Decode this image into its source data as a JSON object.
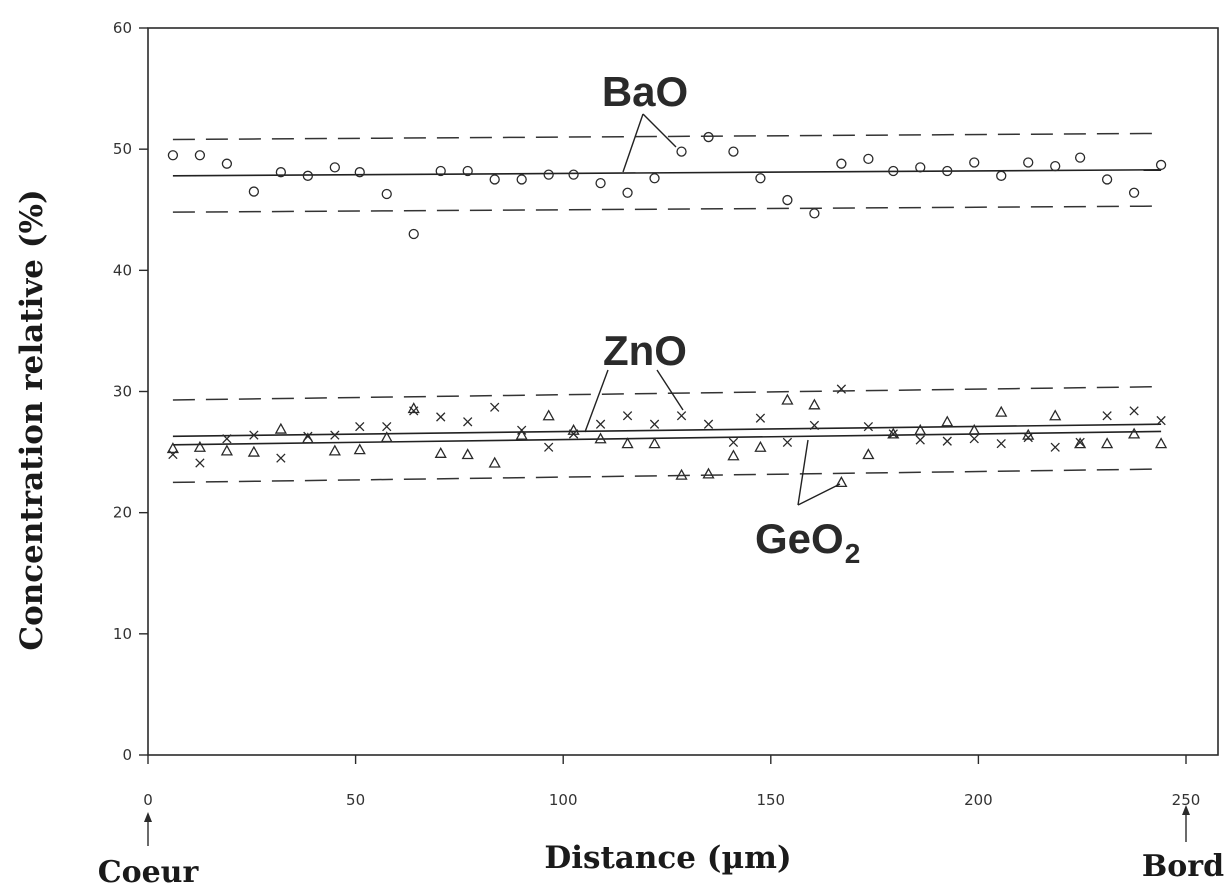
{
  "chart_data": {
    "type": "scatter",
    "title": "",
    "xlabel": "Distance (µm)",
    "ylabel": "Concentration relative (%)",
    "xlim": [
      0,
      250
    ],
    "ylim": [
      0,
      60
    ],
    "xticks": [
      0,
      50,
      100,
      150,
      200,
      250
    ],
    "yticks": [
      0,
      10,
      20,
      30,
      40,
      50,
      60
    ],
    "grid": false,
    "x_start_label": "Coeur",
    "x_end_label": "Bord",
    "series": [
      {
        "name": "BaO",
        "marker": "circle",
        "x": [
          6,
          12.5,
          19,
          25.5,
          32,
          38.5,
          45,
          51,
          57.5,
          64,
          70.5,
          77,
          83.5,
          90,
          96.5,
          102.5,
          109,
          115.5,
          122,
          128.5,
          135,
          141,
          147.5,
          154,
          160.5,
          167,
          173.5,
          179.5,
          186,
          192.5,
          199,
          205.5,
          212,
          218.5,
          224.5,
          231,
          237.5,
          244
        ],
        "y": [
          49.5,
          49.5,
          48.8,
          46.5,
          48.1,
          47.8,
          48.5,
          48.1,
          46.3,
          43.0,
          48.2,
          48.2,
          47.5,
          47.5,
          47.9,
          47.9,
          47.2,
          46.4,
          47.6,
          49.8,
          51.0,
          49.8,
          47.6,
          45.8,
          44.7,
          48.8,
          49.2,
          48.2,
          48.5,
          48.2,
          48.9,
          47.8,
          48.9,
          48.6,
          49.3,
          47.5,
          46.4,
          48.7
        ],
        "fit": [
          47.8,
          48.3
        ],
        "band_upper": [
          50.8,
          51.3
        ],
        "band_lower": [
          44.8,
          45.3
        ]
      },
      {
        "name": "ZnO",
        "marker": "cross",
        "x": [
          6,
          12.5,
          19,
          25.5,
          32,
          38.5,
          45,
          51,
          57.5,
          64,
          70.5,
          77,
          83.5,
          90,
          96.5,
          102.5,
          109,
          115.5,
          122,
          128.5,
          135,
          141,
          147.5,
          154,
          160.5,
          167,
          173.5,
          179.5,
          186,
          192.5,
          199,
          205.5,
          212,
          218.5,
          224.5,
          231,
          237.5,
          244
        ],
        "y": [
          24.8,
          24.1,
          26.1,
          26.4,
          24.5,
          26.3,
          26.4,
          27.1,
          27.1,
          28.4,
          27.9,
          27.5,
          28.7,
          26.8,
          25.4,
          26.5,
          27.3,
          28.0,
          27.3,
          28.0,
          27.3,
          25.8,
          27.8,
          25.8,
          27.2,
          30.2,
          27.1,
          26.5,
          26.0,
          25.9,
          26.1,
          25.7,
          26.2,
          25.4,
          25.8,
          28.0,
          28.4,
          27.6
        ],
        "fit": [
          26.3,
          27.3
        ]
      },
      {
        "name": "GeO2",
        "marker": "triangle",
        "x": [
          6,
          12.5,
          19,
          25.5,
          32,
          38.5,
          45,
          51,
          57.5,
          64,
          70.5,
          77,
          83.5,
          90,
          96.5,
          102.5,
          109,
          115.5,
          122,
          128.5,
          135,
          141,
          147.5,
          154,
          160.5,
          167,
          173.5,
          179.5,
          186,
          192.5,
          199,
          205.5,
          212,
          218.5,
          224.5,
          231,
          237.5,
          244
        ],
        "y": [
          25.3,
          25.4,
          25.1,
          25.0,
          26.9,
          26.1,
          25.1,
          25.2,
          26.2,
          28.6,
          24.9,
          24.8,
          24.1,
          26.4,
          28.0,
          26.8,
          26.1,
          25.7,
          25.7,
          23.1,
          23.2,
          24.7,
          25.4,
          29.3,
          28.9,
          22.5,
          24.8,
          26.5,
          26.8,
          27.5,
          26.8,
          28.3,
          26.4,
          28.0,
          25.7,
          25.7,
          26.5,
          25.7
        ],
        "fit": [
          25.6,
          26.7
        ],
        "band_upper": [
          29.3,
          30.4
        ],
        "band_lower": [
          22.5,
          23.6
        ]
      }
    ],
    "annotations": [
      {
        "text": "BaO",
        "pointer": "leaders from label to the BaO fit line and to a BaO data point"
      },
      {
        "text": "ZnO",
        "pointer": "leaders from label to the ZnO fit line and to a ZnO data point"
      },
      {
        "text": "GeO",
        "subscript": "2",
        "pointer": "leaders from label to the GeO2 fit line and to a GeO2 data point"
      }
    ]
  }
}
